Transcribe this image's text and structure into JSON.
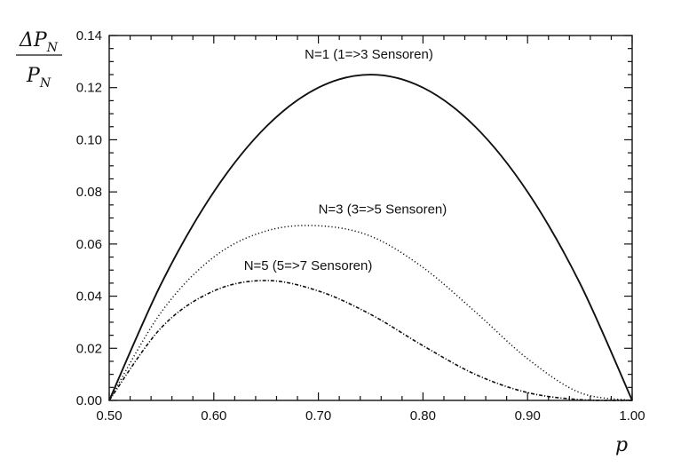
{
  "chart_data": {
    "type": "line",
    "title": "",
    "xlabel": "p",
    "ylabel": {
      "numerator_symbol": "ΔP",
      "numerator_subscript": "N",
      "denominator_symbol": "P",
      "denominator_subscript": "N"
    },
    "xlim": [
      0.5,
      1.0
    ],
    "ylim": [
      0.0,
      0.14
    ],
    "x_ticks": [
      "0.50",
      "0.60",
      "0.70",
      "0.80",
      "0.90",
      "1.00"
    ],
    "y_ticks": [
      "0.00",
      "0.02",
      "0.04",
      "0.06",
      "0.08",
      "0.10",
      "0.12",
      "0.14"
    ],
    "grid": false,
    "x": [
      0.5,
      0.55,
      0.6,
      0.65,
      0.7,
      0.75,
      0.8,
      0.85,
      0.9,
      0.95,
      1.0
    ],
    "series": [
      {
        "name": "N=1 (1=>3 Sensoren)",
        "style": "solid",
        "values": [
          0.0,
          0.045,
          0.08,
          0.105,
          0.12,
          0.125,
          0.12,
          0.105,
          0.08,
          0.045,
          0.0
        ]
      },
      {
        "name": "N=3 (3=>5 Sensoren)",
        "style": "dotted",
        "values": [
          0.0,
          0.034,
          0.055,
          0.065,
          0.067,
          0.063,
          0.051,
          0.034,
          0.016,
          0.003,
          0.0
        ]
      },
      {
        "name": "N=5 (5=>7 Sensoren)",
        "style": "dash-dot",
        "values": [
          0.0,
          0.028,
          0.042,
          0.046,
          0.042,
          0.033,
          0.021,
          0.01,
          0.003,
          0.0003,
          0.0
        ]
      }
    ]
  }
}
